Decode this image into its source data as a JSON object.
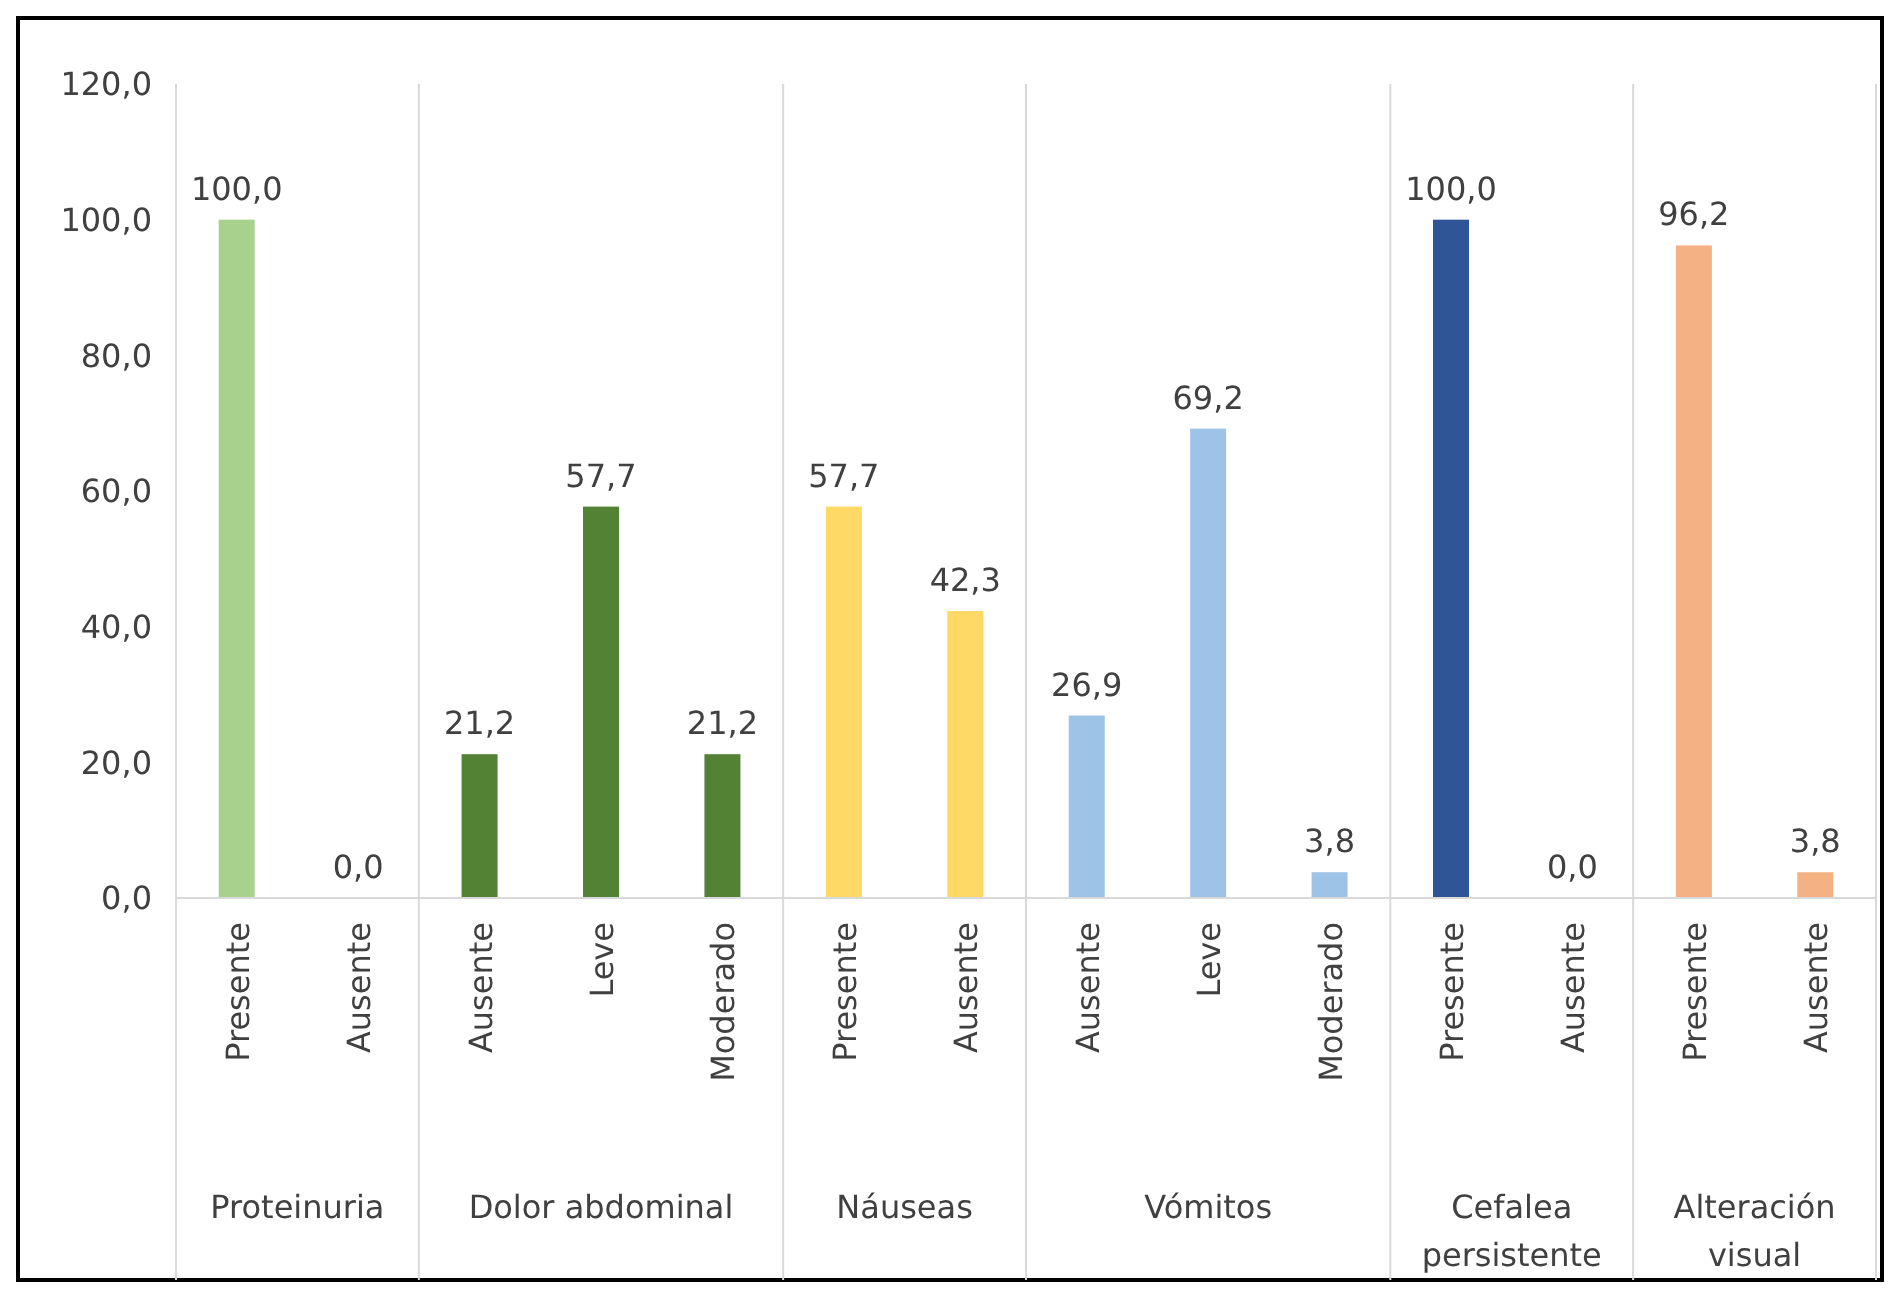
{
  "chart_data": [
    {
      "type": "bar",
      "xlabel": "Proteinuria",
      "categories": [
        "Presente",
        "Ausente"
      ],
      "values": [
        100.0,
        0.0
      ],
      "value_labels": [
        "100,0",
        "0,0"
      ],
      "color": "#a9d18e",
      "ylim": [
        0,
        120
      ],
      "yticks": [
        {
          "value": 0,
          "label": "0,0"
        },
        {
          "value": 20,
          "label": "20,0"
        },
        {
          "value": 40,
          "label": "40,0"
        },
        {
          "value": 60,
          "label": "60,0"
        },
        {
          "value": 80,
          "label": "80,0"
        },
        {
          "value": 100,
          "label": "100,0"
        },
        {
          "value": 120,
          "label": "120,0"
        }
      ]
    },
    {
      "type": "bar",
      "xlabel": "Dolor abdominal",
      "categories": [
        "Ausente",
        "Leve",
        "Moderado"
      ],
      "values": [
        21.2,
        57.7,
        21.2
      ],
      "value_labels": [
        "21,2",
        "57,7",
        "21,2"
      ],
      "color": "#548235",
      "ylim": [
        0,
        120
      ],
      "tick_labels": "x"
    },
    {
      "type": "bar",
      "xlabel": "Náuseas",
      "categories": [
        "Presente",
        "Ausente"
      ],
      "values": [
        57.7,
        42.3
      ],
      "value_labels": [
        "57,7",
        "42,3"
      ],
      "color": "#ffd966",
      "ylim": [
        0,
        120
      ],
      "tick_labels": "x"
    },
    {
      "type": "bar",
      "xlabel": "Vómitos",
      "categories": [
        "Ausente",
        "Leve",
        "Moderado"
      ],
      "values": [
        26.9,
        69.2,
        3.8
      ],
      "value_labels": [
        "26,9",
        "69,2",
        "3,8"
      ],
      "color": "#9dc3e6",
      "ylim": [
        0,
        120
      ],
      "tick_labels": "x"
    },
    {
      "type": "bar",
      "xlabel": "Cefalea persistente",
      "categories": [
        "Presente",
        "Ausente"
      ],
      "values": [
        100.0,
        0.0
      ],
      "value_labels": [
        "100,0",
        "0,0"
      ],
      "color": "#2f5597",
      "ylim": [
        0,
        120
      ],
      "tick_labels": "x"
    },
    {
      "type": "bar",
      "xlabel": "Alteración visual",
      "categories": [
        "Presente",
        "Ausente"
      ],
      "values": [
        96.2,
        3.8
      ],
      "value_labels": [
        "96,2",
        "3,8"
      ],
      "color": "#f4b183",
      "ylim": [
        0,
        120
      ],
      "tick_labels": "x"
    }
  ]
}
